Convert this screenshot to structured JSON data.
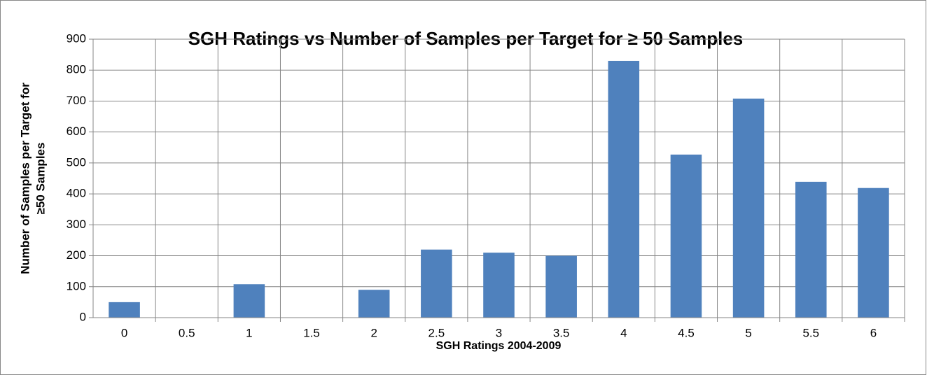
{
  "chart_data": {
    "type": "bar",
    "title": "SGH Ratings vs Number of Samples per Target for ≥ 50 Samples",
    "x_label": "SGH Ratings 2004-2009",
    "y_label": [
      "Number  of  Samples per Target for",
      "≥50 Samples"
    ],
    "categories": [
      "0",
      "0.5",
      "1",
      "1.5",
      "2",
      "2.5",
      "3",
      "3.5",
      "4",
      "4.5",
      "5",
      "5.5",
      "6"
    ],
    "values": [
      50,
      0,
      108,
      0,
      90,
      220,
      210,
      200,
      830,
      527,
      708,
      439,
      419
    ],
    "color": "#4f81bd",
    "ylim": [
      0,
      900
    ],
    "yticks": [
      0,
      100,
      200,
      300,
      400,
      500,
      600,
      700,
      800,
      900
    ],
    "grid": true
  }
}
